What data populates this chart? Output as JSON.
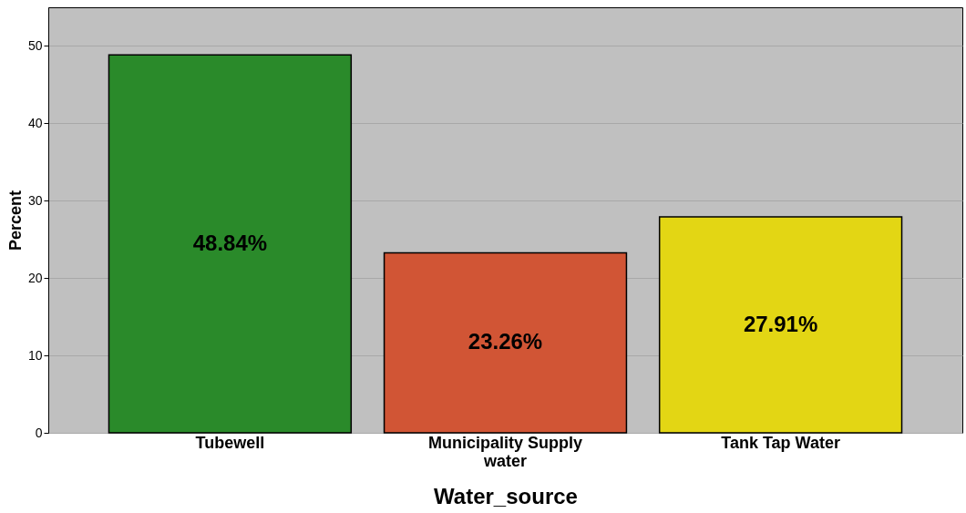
{
  "chart_data": {
    "type": "bar",
    "xlabel": "Water_source",
    "ylabel": "Percent",
    "categories": [
      "Tubewell",
      "Municipality Supply water",
      "Tank Tap Water"
    ],
    "values": [
      48.84,
      23.26,
      27.91
    ],
    "colors": [
      "#2a8a2a",
      "#d15535",
      "#e3d614"
    ],
    "value_labels": [
      "48.84%",
      "23.26%",
      "27.91%"
    ],
    "ylim": [
      0,
      55
    ],
    "yticks": [
      0,
      10,
      20,
      30,
      40,
      50
    ],
    "grid": "y"
  }
}
